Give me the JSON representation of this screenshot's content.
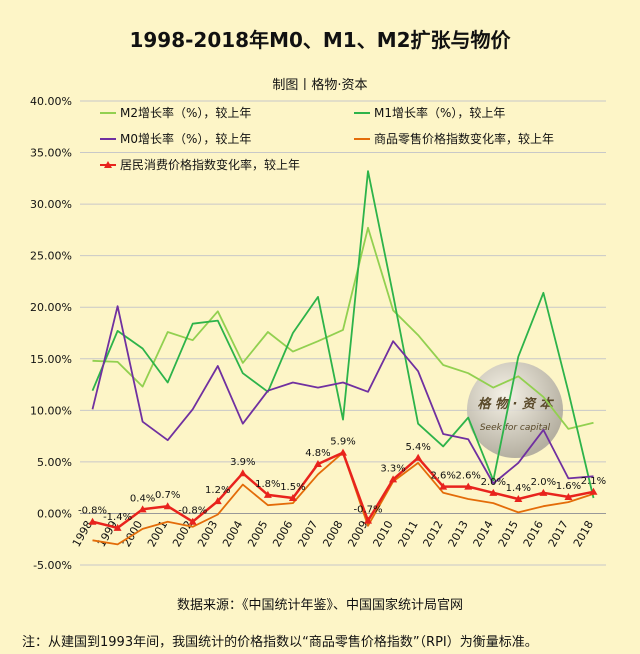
{
  "title": "1998-2018年M0、M1、M2扩张与物价",
  "subtitle": "制图丨格物·资本",
  "source": "数据来源：《中国统计年鉴》、中国国家统计局官网",
  "note": "注：从建国到1993年间，我国统计的价格指数以“商品零售价格指数”（RPI）为衡量标准。",
  "watermark": {
    "main": "格 物 · 资 本",
    "sub": "Seek for capital"
  },
  "chart_data": {
    "type": "line",
    "categories": [
      "1998",
      "1999",
      "2000",
      "2001",
      "2002",
      "2003",
      "2004",
      "2005",
      "2006",
      "2007",
      "2008",
      "2009",
      "2010",
      "2011",
      "2012",
      "2013",
      "2014",
      "2015",
      "2016",
      "2017",
      "2018"
    ],
    "ylim": [
      -5,
      40
    ],
    "yticks": [
      "-5.00%",
      "0.00%",
      "5.00%",
      "10.00%",
      "15.00%",
      "20.00%",
      "25.00%",
      "30.00%",
      "35.00%",
      "40.00%"
    ],
    "ytick_values": [
      -5,
      0,
      5,
      10,
      15,
      20,
      25,
      30,
      35,
      40
    ],
    "grid": true,
    "series": [
      {
        "name": "M2增长率（%），较上年",
        "color": "#92d050",
        "marker": false,
        "values": [
          14.8,
          14.7,
          12.3,
          17.6,
          16.8,
          19.6,
          14.6,
          17.6,
          15.7,
          16.7,
          17.8,
          27.7,
          19.7,
          17.3,
          14.4,
          13.6,
          12.2,
          13.3,
          11.3,
          8.2,
          8.8
        ]
      },
      {
        "name": "M1增长率（%），较上年",
        "color": "#2db34a",
        "marker": false,
        "values": [
          11.9,
          17.7,
          16.0,
          12.7,
          18.4,
          18.7,
          13.6,
          11.8,
          17.5,
          21.0,
          9.1,
          33.2,
          21.2,
          8.7,
          6.5,
          9.3,
          3.2,
          15.2,
          21.4,
          11.8,
          1.5
        ]
      },
      {
        "name": "M0增长率（%），较上年",
        "color": "#7030a0",
        "marker": false,
        "values": [
          10.1,
          20.1,
          8.9,
          7.1,
          10.1,
          14.3,
          8.7,
          11.9,
          12.7,
          12.2,
          12.7,
          11.8,
          16.7,
          13.8,
          7.7,
          7.2,
          2.9,
          4.9,
          8.1,
          3.4,
          3.6
        ]
      },
      {
        "name": "商品零售价格指数变化率，较上年",
        "color": "#e36c09",
        "marker": false,
        "values": [
          -2.6,
          -3.0,
          -1.5,
          -0.8,
          -1.3,
          -0.1,
          2.8,
          0.8,
          1.0,
          3.8,
          5.9,
          -1.2,
          3.1,
          4.9,
          2.0,
          1.4,
          1.0,
          0.1,
          0.7,
          1.1,
          1.9
        ]
      },
      {
        "name": "居民消费价格指数变化率，较上年",
        "color": "#e8231d",
        "marker": true,
        "values": [
          -0.8,
          -1.4,
          0.4,
          0.7,
          -0.8,
          1.2,
          3.9,
          1.8,
          1.5,
          4.8,
          5.9,
          -0.7,
          3.3,
          5.4,
          2.6,
          2.6,
          2.0,
          1.4,
          2.0,
          1.6,
          2.1
        ],
        "labels": [
          "-0.8%",
          "-1.4%",
          "0.4%",
          "0.7%",
          "-0.8%",
          "1.2%",
          "3.9%",
          "1.8%",
          "1.5%",
          "4.8%",
          "5.9%",
          "-0.7%",
          "3.3%",
          "5.4%",
          "2.6%",
          "2.6%",
          "2.0%",
          "1.4%",
          "2.0%",
          "1.6%",
          "2.1%"
        ]
      }
    ]
  }
}
